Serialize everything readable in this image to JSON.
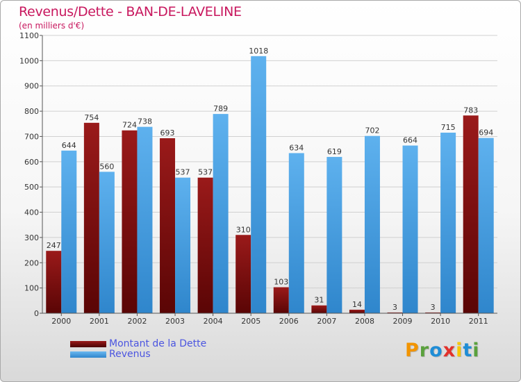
{
  "chart_data": {
    "type": "bar",
    "title": "Revenus/Dette - BAN-DE-LAVELINE",
    "subtitle": "(en milliers d'€)",
    "categories": [
      "2000",
      "2001",
      "2002",
      "2003",
      "2004",
      "2005",
      "2006",
      "2007",
      "2008",
      "2009",
      "2010",
      "2011"
    ],
    "series": [
      {
        "name": "Montant de la Dette",
        "color": "#7a0c0c",
        "values": [
          247,
          754,
          724,
          693,
          537,
          310,
          103,
          31,
          14,
          3,
          3,
          783
        ]
      },
      {
        "name": "Revenus",
        "color": "#4aa3e6",
        "values": [
          644,
          560,
          738,
          537,
          789,
          1018,
          634,
          619,
          702,
          664,
          715,
          694
        ]
      }
    ],
    "ylim": [
      0,
      1100
    ],
    "yticks": [
      0,
      100,
      200,
      300,
      400,
      500,
      600,
      700,
      800,
      900,
      1000,
      1100
    ],
    "grid": true,
    "legend_position": "bottom-left"
  },
  "logo": {
    "text": "Proxiti",
    "colors": [
      "#f29400",
      "#5aa13d",
      "#1f8dd6",
      "#e2312b",
      "#f7c600",
      "#1f8dd6",
      "#5aa13d"
    ]
  }
}
